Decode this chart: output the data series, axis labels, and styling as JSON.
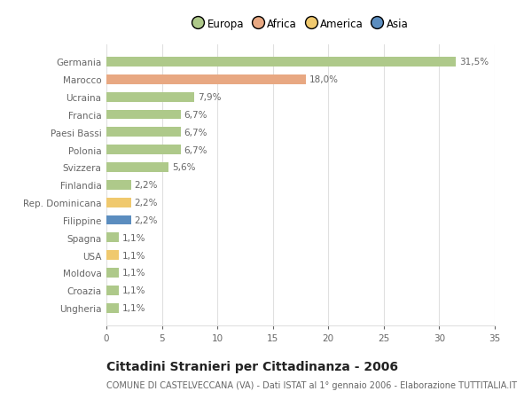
{
  "categories": [
    "Germania",
    "Marocco",
    "Ucraina",
    "Francia",
    "Paesi Bassi",
    "Polonia",
    "Svizzera",
    "Finlandia",
    "Rep. Dominicana",
    "Filippine",
    "Spagna",
    "USA",
    "Moldova",
    "Croazia",
    "Ungheria"
  ],
  "values": [
    31.5,
    18.0,
    7.9,
    6.7,
    6.7,
    6.7,
    5.6,
    2.2,
    2.2,
    2.2,
    1.1,
    1.1,
    1.1,
    1.1,
    1.1
  ],
  "labels": [
    "31,5%",
    "18,0%",
    "7,9%",
    "6,7%",
    "6,7%",
    "6,7%",
    "5,6%",
    "2,2%",
    "2,2%",
    "2,2%",
    "1,1%",
    "1,1%",
    "1,1%",
    "1,1%",
    "1,1%"
  ],
  "continents": [
    "Europa",
    "Africa",
    "Europa",
    "Europa",
    "Europa",
    "Europa",
    "Europa",
    "Europa",
    "America",
    "Asia",
    "Europa",
    "America",
    "Europa",
    "Europa",
    "Europa"
  ],
  "continent_colors": {
    "Europa": "#aec98a",
    "Africa": "#e8a882",
    "America": "#f0c96e",
    "Asia": "#5b8dbf"
  },
  "legend_order": [
    "Europa",
    "Africa",
    "America",
    "Asia"
  ],
  "legend_colors": [
    "#aec98a",
    "#e8a882",
    "#f0c96e",
    "#5b8dbf"
  ],
  "xlim": [
    0,
    35
  ],
  "xticks": [
    0,
    5,
    10,
    15,
    20,
    25,
    30,
    35
  ],
  "title": "Cittadini Stranieri per Cittadinanza - 2006",
  "subtitle": "COMUNE DI CASTELVECCANA (VA) - Dati ISTAT al 1° gennaio 2006 - Elaborazione TUTTITALIA.IT",
  "background_color": "#ffffff",
  "grid_color": "#e0e0e0",
  "bar_height": 0.55,
  "label_fontsize": 7.5,
  "tick_fontsize": 7.5,
  "title_fontsize": 10,
  "subtitle_fontsize": 7
}
